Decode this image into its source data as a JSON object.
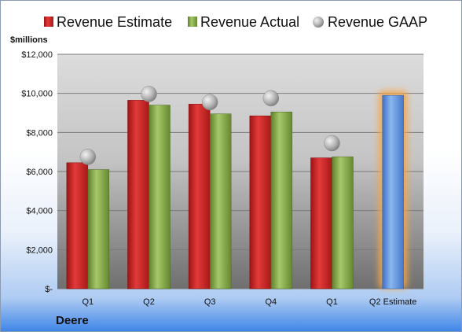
{
  "chart_data": {
    "type": "bar",
    "title": "",
    "xlabel": "",
    "ylabel": "",
    "y_unit_label": "$millions",
    "company_label": "Deere",
    "categories": [
      "Q1",
      "Q2",
      "Q3",
      "Q4",
      "Q1",
      "Q2 Estimate"
    ],
    "ylim": [
      0,
      12000
    ],
    "yticks": [
      {
        "value": 0,
        "label": "$-"
      },
      {
        "value": 2000,
        "label": "$2,000"
      },
      {
        "value": 4000,
        "label": "$4,000"
      },
      {
        "value": 6000,
        "label": "$6,000"
      },
      {
        "value": 8000,
        "label": "$8,000"
      },
      {
        "value": 10000,
        "label": "$10,000"
      },
      {
        "value": 12000,
        "label": "$12,000"
      }
    ],
    "grid": true,
    "legend_position": "top",
    "series": [
      {
        "name": "Revenue Estimate",
        "kind": "bar",
        "color": "#d42a2a",
        "values": [
          6450,
          9650,
          9450,
          8850,
          6700,
          9900
        ]
      },
      {
        "name": "Revenue Actual",
        "kind": "bar",
        "color": "#8db14b",
        "values": [
          6100,
          9400,
          8950,
          9050,
          6750,
          null
        ]
      },
      {
        "name": "Revenue GAAP",
        "kind": "marker",
        "color": "#b8b8b8",
        "values": [
          6750,
          9970,
          9550,
          9750,
          7450,
          null
        ]
      }
    ],
    "estimate_bar_color": "#6e9ee0",
    "estimate_glow_color": "#f5a64a"
  }
}
